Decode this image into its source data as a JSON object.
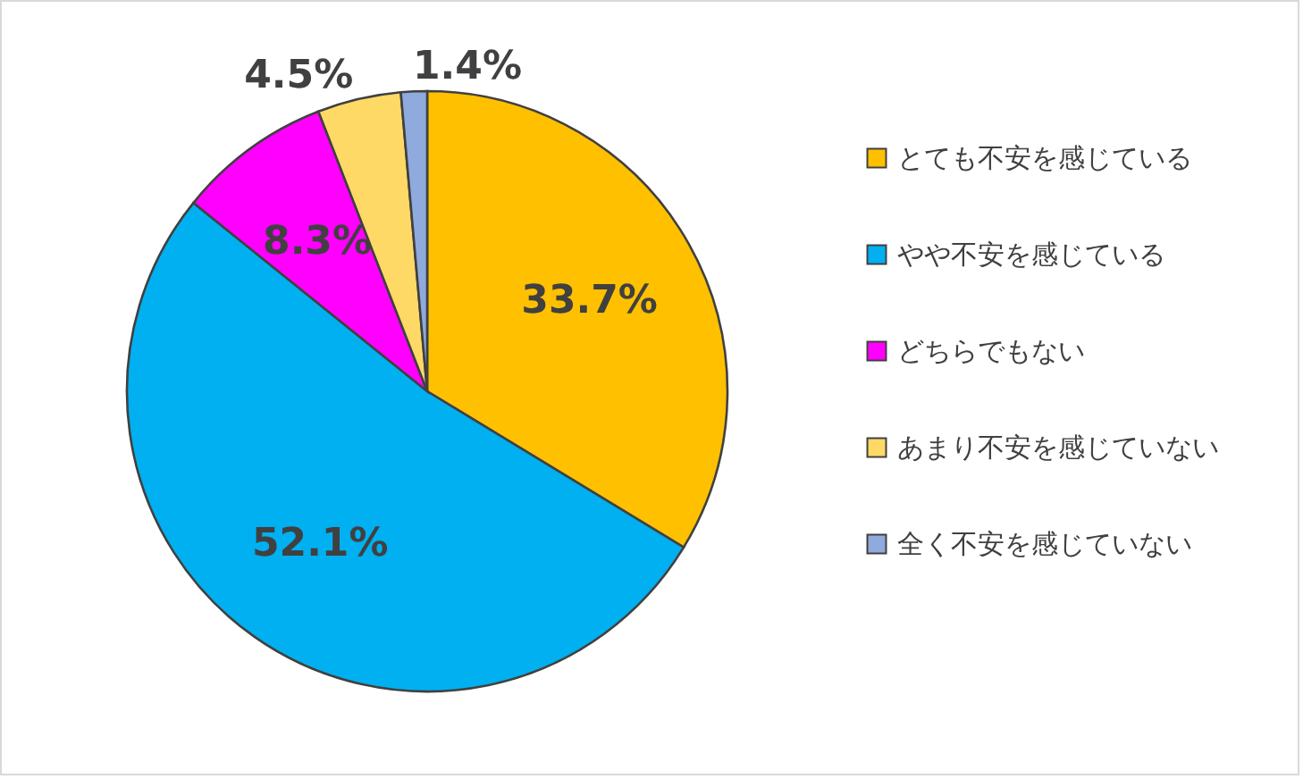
{
  "chart_data": {
    "type": "pie",
    "categories": [
      "とても不安を感じている",
      "やや不安を感じている",
      "どちらでもない",
      "あまり不安を感じていない",
      "全く不安を感じていない"
    ],
    "values": [
      33.7,
      52.1,
      8.3,
      4.5,
      1.4
    ],
    "colors": [
      "#ffc000",
      "#00b0f0",
      "#ff00ff",
      "#ffd966",
      "#8faadc"
    ],
    "value_labels": [
      "33.7%",
      "52.1%",
      "8.3%",
      "4.5%",
      "1.4%"
    ],
    "legend": "right"
  }
}
